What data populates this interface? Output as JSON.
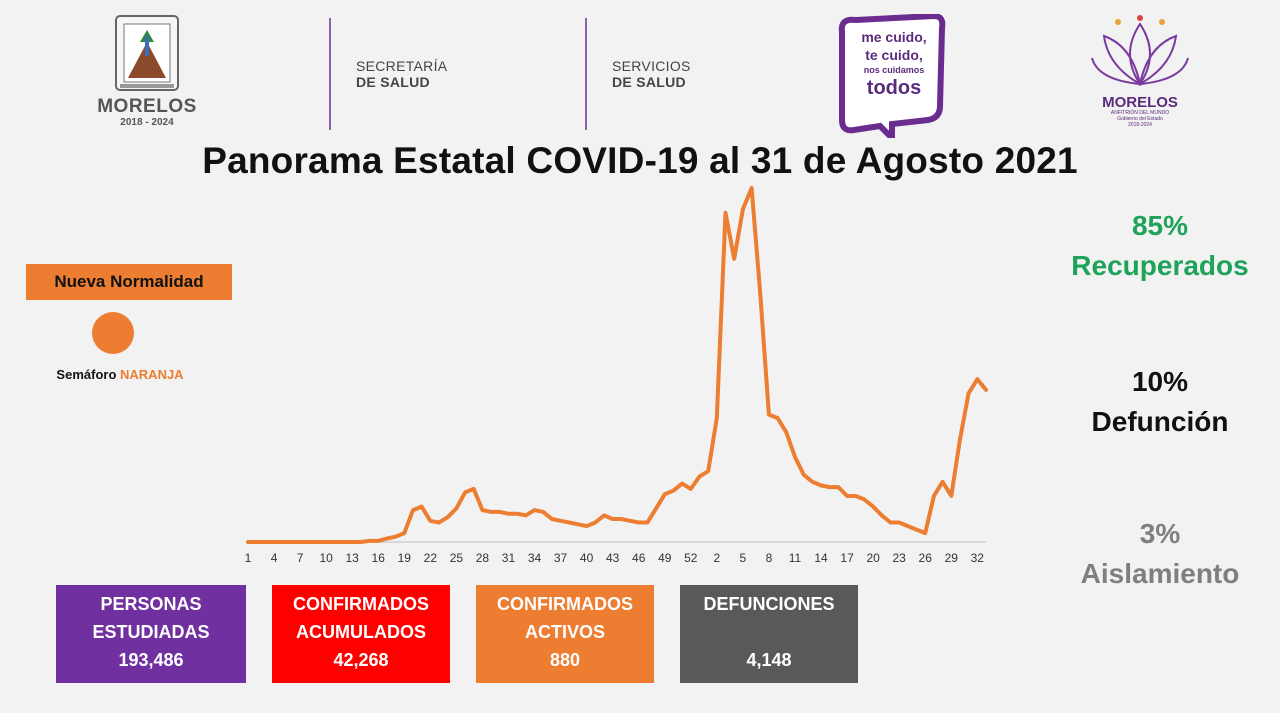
{
  "header": {
    "state_logo": {
      "name": "MORELOS",
      "years": "2018 - 2024",
      "icon": "morelos-crest-icon"
    },
    "agency_1": {
      "line1": "SECRETARÍA",
      "line2": "DE SALUD"
    },
    "agency_2": {
      "line1": "SERVICIOS",
      "line2": "DE SALUD"
    },
    "slogan": {
      "line1": "me cuido,",
      "line2": "te cuido,",
      "line3": "nos cuidamos",
      "line4": "todos"
    },
    "government_logo": {
      "name": "MORELOS",
      "tagline": "ANFITRIÓN DEL MUNDO",
      "sub1": "Gobierno del Estado",
      "sub2": "2018-2024",
      "icon": "flower-icon"
    }
  },
  "title": "Panorama Estatal COVID-19 al 31 de Agosto 2021",
  "status": {
    "badge": "Nueva Normalidad",
    "semaforo_prefix": "Semáforo",
    "semaforo_color_word": "NARANJA",
    "semaforo_color": "#ec7d31"
  },
  "stats": {
    "recuperados_pct": "85%",
    "recuperados_label": "Recuperados",
    "defuncion_pct": "10%",
    "defuncion_label": "Defunción",
    "aislamiento_pct": "3%",
    "aislamiento_label": "Aislamiento"
  },
  "boxes": {
    "estudiadas": {
      "line1": "PERSONAS",
      "line2": "ESTUDIADAS",
      "value": "193,486"
    },
    "acumulados": {
      "line1": "CONFIRMADOS",
      "line2": "ACUMULADOS",
      "value": "42,268"
    },
    "activos": {
      "line1": "CONFIRMADOS",
      "line2": "ACTIVOS",
      "value": "880"
    },
    "defunciones": {
      "line1": "DEFUNCIONES",
      "value": "4,148"
    }
  },
  "colors": {
    "purple": "#7030a0",
    "red": "#ff0000",
    "orange": "#ec7d31",
    "dark_gray": "#595959",
    "green": "#1fa35a"
  },
  "chart_data": {
    "type": "line",
    "title": "",
    "xlabel": "",
    "ylabel": "",
    "grid": false,
    "legend": "none",
    "x_tick_labels": [
      "1",
      "4",
      "7",
      "10",
      "13",
      "16",
      "19",
      "22",
      "25",
      "28",
      "31",
      "34",
      "37",
      "40",
      "43",
      "46",
      "49",
      "52",
      "2",
      "5",
      "8",
      "11",
      "14",
      "17",
      "20",
      "23",
      "26",
      "29",
      "32"
    ],
    "tick_every": 3,
    "ylim": [
      0,
      100
    ],
    "values": [
      0,
      0,
      0,
      0,
      0,
      0,
      0,
      0,
      0,
      0,
      0,
      0,
      0,
      0,
      0.3,
      0.3,
      1,
      1.5,
      2.5,
      9,
      10,
      6,
      5.5,
      7,
      9.5,
      14,
      15,
      9,
      8.5,
      8.5,
      8,
      8,
      7.5,
      9,
      8.5,
      6.5,
      6,
      5.5,
      5,
      4.5,
      5.5,
      7.5,
      6.5,
      6.5,
      6,
      5.5,
      5.5,
      9.5,
      13.5,
      14.5,
      16.5,
      15,
      18.5,
      20,
      35,
      93,
      80,
      94,
      100,
      70,
      36,
      35,
      31,
      24,
      19,
      17,
      16,
      15.5,
      15.5,
      13,
      13,
      12,
      10,
      7.5,
      5.5,
      5.5,
      4.5,
      3.5,
      2.5,
      13,
      17,
      13,
      29,
      42,
      46,
      43
    ]
  }
}
